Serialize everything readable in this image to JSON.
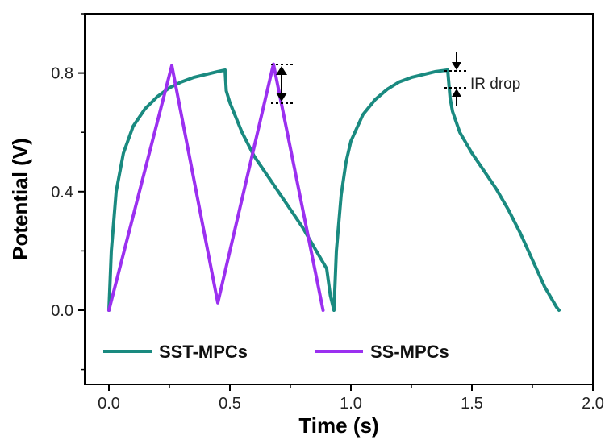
{
  "chart_data": {
    "type": "line",
    "title": "",
    "xlabel": "Time (s)",
    "ylabel": "Potential (V)",
    "xlim": [
      -0.1,
      2.0
    ],
    "ylim": [
      -0.25,
      1.0
    ],
    "xticks": [
      "0.0",
      "0.5",
      "1.0",
      "1.5",
      "2.0"
    ],
    "xtick_values": [
      0.0,
      0.5,
      1.0,
      1.5,
      2.0
    ],
    "yticks": [
      "0.0",
      "0.4",
      "0.8"
    ],
    "ytick_values": [
      0.0,
      0.4,
      0.8
    ],
    "grid": false,
    "legend_position": "bottom-inside",
    "annotation": "IR drop",
    "series": [
      {
        "name": "SST-MPCs",
        "color": "#1a8a80",
        "x": [
          0.0,
          0.01,
          0.03,
          0.06,
          0.1,
          0.15,
          0.2,
          0.25,
          0.3,
          0.35,
          0.4,
          0.45,
          0.48,
          0.485,
          0.5,
          0.55,
          0.6,
          0.7,
          0.8,
          0.9,
          0.915,
          0.93,
          0.94,
          0.96,
          0.98,
          1.0,
          1.05,
          1.1,
          1.15,
          1.2,
          1.25,
          1.3,
          1.35,
          1.4,
          1.41,
          1.42,
          1.45,
          1.5,
          1.55,
          1.6,
          1.65,
          1.7,
          1.75,
          1.8,
          1.85,
          1.86
        ],
        "y": [
          0.0,
          0.2,
          0.4,
          0.53,
          0.62,
          0.68,
          0.72,
          0.75,
          0.77,
          0.785,
          0.795,
          0.805,
          0.81,
          0.74,
          0.7,
          0.6,
          0.52,
          0.4,
          0.28,
          0.14,
          0.05,
          0.0,
          0.2,
          0.39,
          0.5,
          0.57,
          0.66,
          0.71,
          0.745,
          0.77,
          0.785,
          0.795,
          0.805,
          0.81,
          0.715,
          0.67,
          0.6,
          0.53,
          0.47,
          0.41,
          0.34,
          0.26,
          0.17,
          0.08,
          0.01,
          0.0
        ]
      },
      {
        "name": "SS-MPCs",
        "color": "#9b30f0",
        "x": [
          0.0,
          0.26,
          0.45,
          0.68,
          0.885
        ],
        "y": [
          0.0,
          0.825,
          0.025,
          0.83,
          0.0
        ]
      }
    ]
  }
}
